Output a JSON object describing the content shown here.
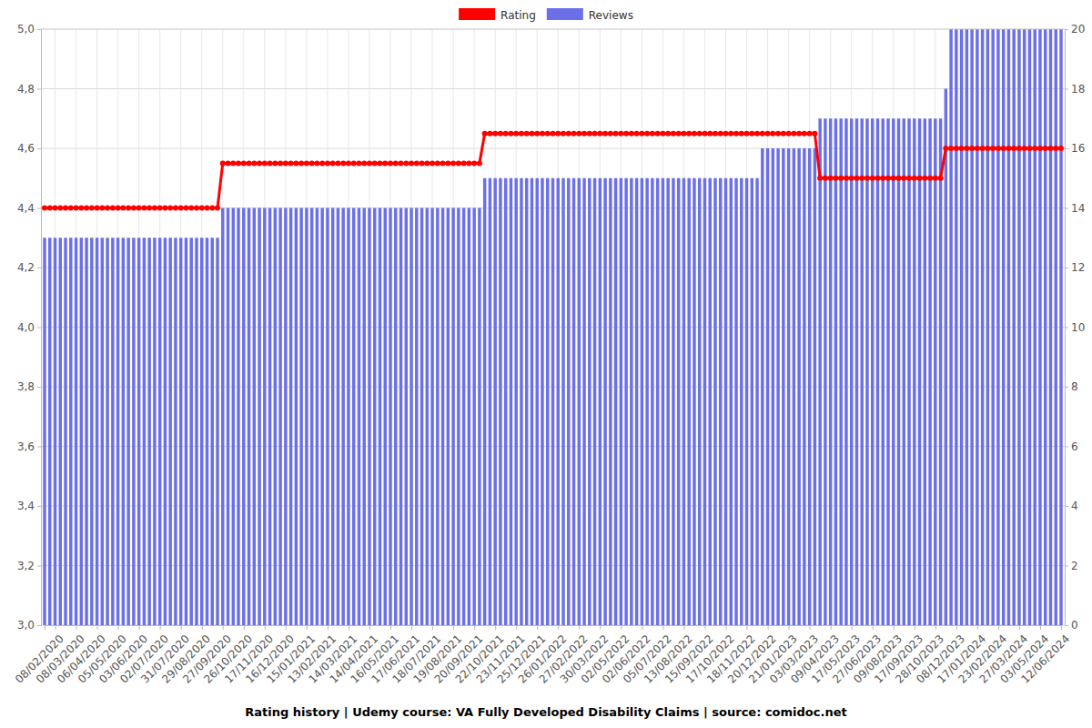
{
  "chart_data": {
    "type": "bar",
    "title": "Rating history | Udemy course: VA Fully Developed Disability Claims | source: comidoc.net",
    "categories": [
      null,
      null,
      "08/02/2020",
      null,
      null,
      null,
      "08/03/2020",
      null,
      null,
      null,
      "06/04/2020",
      null,
      null,
      null,
      "05/05/2020",
      null,
      null,
      null,
      "03/06/2020",
      null,
      null,
      null,
      "02/07/2020",
      null,
      null,
      null,
      "31/07/2020",
      null,
      null,
      null,
      "29/08/2020",
      null,
      null,
      null,
      "27/09/2020",
      null,
      null,
      null,
      "26/10/2020",
      null,
      null,
      null,
      "17/11/2020",
      null,
      null,
      null,
      "16/12/2020",
      null,
      null,
      null,
      "15/01/2021",
      null,
      null,
      null,
      "13/02/2021",
      null,
      null,
      null,
      "14/03/2021",
      null,
      null,
      null,
      "14/04/2021",
      null,
      null,
      null,
      "16/05/2021",
      null,
      null,
      null,
      "17/06/2021",
      null,
      null,
      null,
      "18/07/2021",
      null,
      null,
      null,
      "19/08/2021",
      null,
      null,
      null,
      "20/09/2021",
      null,
      null,
      null,
      "22/10/2021",
      null,
      null,
      null,
      "23/11/2021",
      null,
      null,
      null,
      "25/12/2021",
      null,
      null,
      null,
      "26/01/2022",
      null,
      null,
      null,
      "27/02/2022",
      null,
      null,
      null,
      "30/03/2022",
      null,
      null,
      null,
      "02/05/2022",
      null,
      null,
      null,
      "02/06/2022",
      null,
      null,
      null,
      "05/07/2022",
      null,
      null,
      null,
      "13/08/2022",
      null,
      null,
      null,
      "15/09/2022",
      null,
      null,
      null,
      "17/10/2022",
      null,
      null,
      null,
      "18/11/2022",
      null,
      null,
      null,
      "20/12/2022",
      null,
      null,
      null,
      "21/01/2023",
      null,
      null,
      null,
      "03/03/2023",
      null,
      null,
      null,
      "09/04/2023",
      null,
      null,
      null,
      "17/05/2023",
      null,
      null,
      null,
      "27/06/2023",
      null,
      null,
      null,
      "09/08/2023",
      null,
      null,
      null,
      "17/09/2023",
      null,
      null,
      null,
      "28/10/2023",
      null,
      null,
      null,
      "08/12/2023",
      null,
      null,
      null,
      "17/01/2024",
      null,
      null,
      null,
      "23/02/2024",
      null,
      null,
      null,
      "27/03/2024",
      null,
      null,
      null,
      "03/05/2024",
      null,
      null,
      null,
      "12/06/2024"
    ],
    "series": [
      {
        "name": "Rating",
        "type": "line",
        "color": "#ff0000",
        "marker": "circle",
        "values": [
          4.4,
          4.4,
          4.4,
          4.4,
          4.4,
          4.4,
          4.4,
          4.4,
          4.4,
          4.4,
          4.4,
          4.4,
          4.4,
          4.4,
          4.4,
          4.4,
          4.4,
          4.4,
          4.4,
          4.4,
          4.4,
          4.4,
          4.4,
          4.4,
          4.4,
          4.4,
          4.4,
          4.4,
          4.4,
          4.4,
          4.4,
          4.4,
          4.4,
          4.4,
          4.55,
          4.55,
          4.55,
          4.55,
          4.55,
          4.55,
          4.55,
          4.55,
          4.55,
          4.55,
          4.55,
          4.55,
          4.55,
          4.55,
          4.55,
          4.55,
          4.55,
          4.55,
          4.55,
          4.55,
          4.55,
          4.55,
          4.55,
          4.55,
          4.55,
          4.55,
          4.55,
          4.55,
          4.55,
          4.55,
          4.55,
          4.55,
          4.55,
          4.55,
          4.55,
          4.55,
          4.55,
          4.55,
          4.55,
          4.55,
          4.55,
          4.55,
          4.55,
          4.55,
          4.55,
          4.55,
          4.55,
          4.55,
          4.55,
          4.55,
          4.65,
          4.65,
          4.65,
          4.65,
          4.65,
          4.65,
          4.65,
          4.65,
          4.65,
          4.65,
          4.65,
          4.65,
          4.65,
          4.65,
          4.65,
          4.65,
          4.65,
          4.65,
          4.65,
          4.65,
          4.65,
          4.65,
          4.65,
          4.65,
          4.65,
          4.65,
          4.65,
          4.65,
          4.65,
          4.65,
          4.65,
          4.65,
          4.65,
          4.65,
          4.65,
          4.65,
          4.65,
          4.65,
          4.65,
          4.65,
          4.65,
          4.65,
          4.65,
          4.65,
          4.65,
          4.65,
          4.65,
          4.65,
          4.65,
          4.65,
          4.65,
          4.65,
          4.65,
          4.65,
          4.65,
          4.65,
          4.65,
          4.65,
          4.65,
          4.65,
          4.65,
          4.65,
          4.65,
          4.65,
          4.5,
          4.5,
          4.5,
          4.5,
          4.5,
          4.5,
          4.5,
          4.5,
          4.5,
          4.5,
          4.5,
          4.5,
          4.5,
          4.5,
          4.5,
          4.5,
          4.5,
          4.5,
          4.5,
          4.5,
          4.5,
          4.5,
          4.5,
          4.5,
          4.6,
          4.6,
          4.6,
          4.6,
          4.6,
          4.6,
          4.6,
          4.6,
          4.6,
          4.6,
          4.6,
          4.6,
          4.6,
          4.6,
          4.6,
          4.6,
          4.6,
          4.6,
          4.6,
          4.6,
          4.6,
          4.6,
          4.6
        ]
      },
      {
        "name": "Reviews",
        "type": "bar",
        "color": "#6b6fe8",
        "axis": "y2",
        "values": [
          13,
          13,
          13,
          13,
          13,
          13,
          13,
          13,
          13,
          13,
          13,
          13,
          13,
          13,
          13,
          13,
          13,
          13,
          13,
          13,
          13,
          13,
          13,
          13,
          13,
          13,
          13,
          13,
          13,
          13,
          13,
          13,
          13,
          13,
          14,
          14,
          14,
          14,
          14,
          14,
          14,
          14,
          14,
          14,
          14,
          14,
          14,
          14,
          14,
          14,
          14,
          14,
          14,
          14,
          14,
          14,
          14,
          14,
          14,
          14,
          14,
          14,
          14,
          14,
          14,
          14,
          14,
          14,
          14,
          14,
          14,
          14,
          14,
          14,
          14,
          14,
          14,
          14,
          14,
          14,
          14,
          14,
          14,
          14,
          15,
          15,
          15,
          15,
          15,
          15,
          15,
          15,
          15,
          15,
          15,
          15,
          15,
          15,
          15,
          15,
          15,
          15,
          15,
          15,
          15,
          15,
          15,
          15,
          15,
          15,
          15,
          15,
          15,
          15,
          15,
          15,
          15,
          15,
          15,
          15,
          15,
          15,
          15,
          15,
          15,
          15,
          15,
          15,
          15,
          15,
          15,
          15,
          15,
          15,
          15,
          15,
          15,
          16,
          16,
          16,
          16,
          16,
          16,
          16,
          16,
          16,
          16,
          16,
          17,
          17,
          17,
          17,
          17,
          17,
          17,
          17,
          17,
          17,
          17,
          17,
          17,
          17,
          17,
          17,
          17,
          17,
          17,
          17,
          17,
          17,
          17,
          17,
          18,
          20,
          20,
          20,
          20,
          20,
          20,
          20,
          20,
          20,
          20,
          20,
          20,
          20,
          20,
          20,
          20,
          20,
          20,
          20,
          20,
          20,
          20
        ]
      }
    ],
    "ylim": [
      3.0,
      5.0
    ],
    "yticks": [
      {
        "value": 3.0,
        "label": "3,0"
      },
      {
        "value": 3.2,
        "label": "3,2"
      },
      {
        "value": 3.4,
        "label": "3,4"
      },
      {
        "value": 3.6,
        "label": "3,6"
      },
      {
        "value": 3.8,
        "label": "3,8"
      },
      {
        "value": 4.0,
        "label": "4,0"
      },
      {
        "value": 4.2,
        "label": "4,2"
      },
      {
        "value": 4.4,
        "label": "4,4"
      },
      {
        "value": 4.6,
        "label": "4,6"
      },
      {
        "value": 4.8,
        "label": "4,8"
      },
      {
        "value": 5.0,
        "label": "5,0"
      }
    ],
    "y2lim": [
      0,
      20
    ],
    "y2ticks": [
      0,
      2,
      4,
      6,
      8,
      10,
      12,
      14,
      16,
      18,
      20
    ],
    "grid": true,
    "legend": "top"
  }
}
